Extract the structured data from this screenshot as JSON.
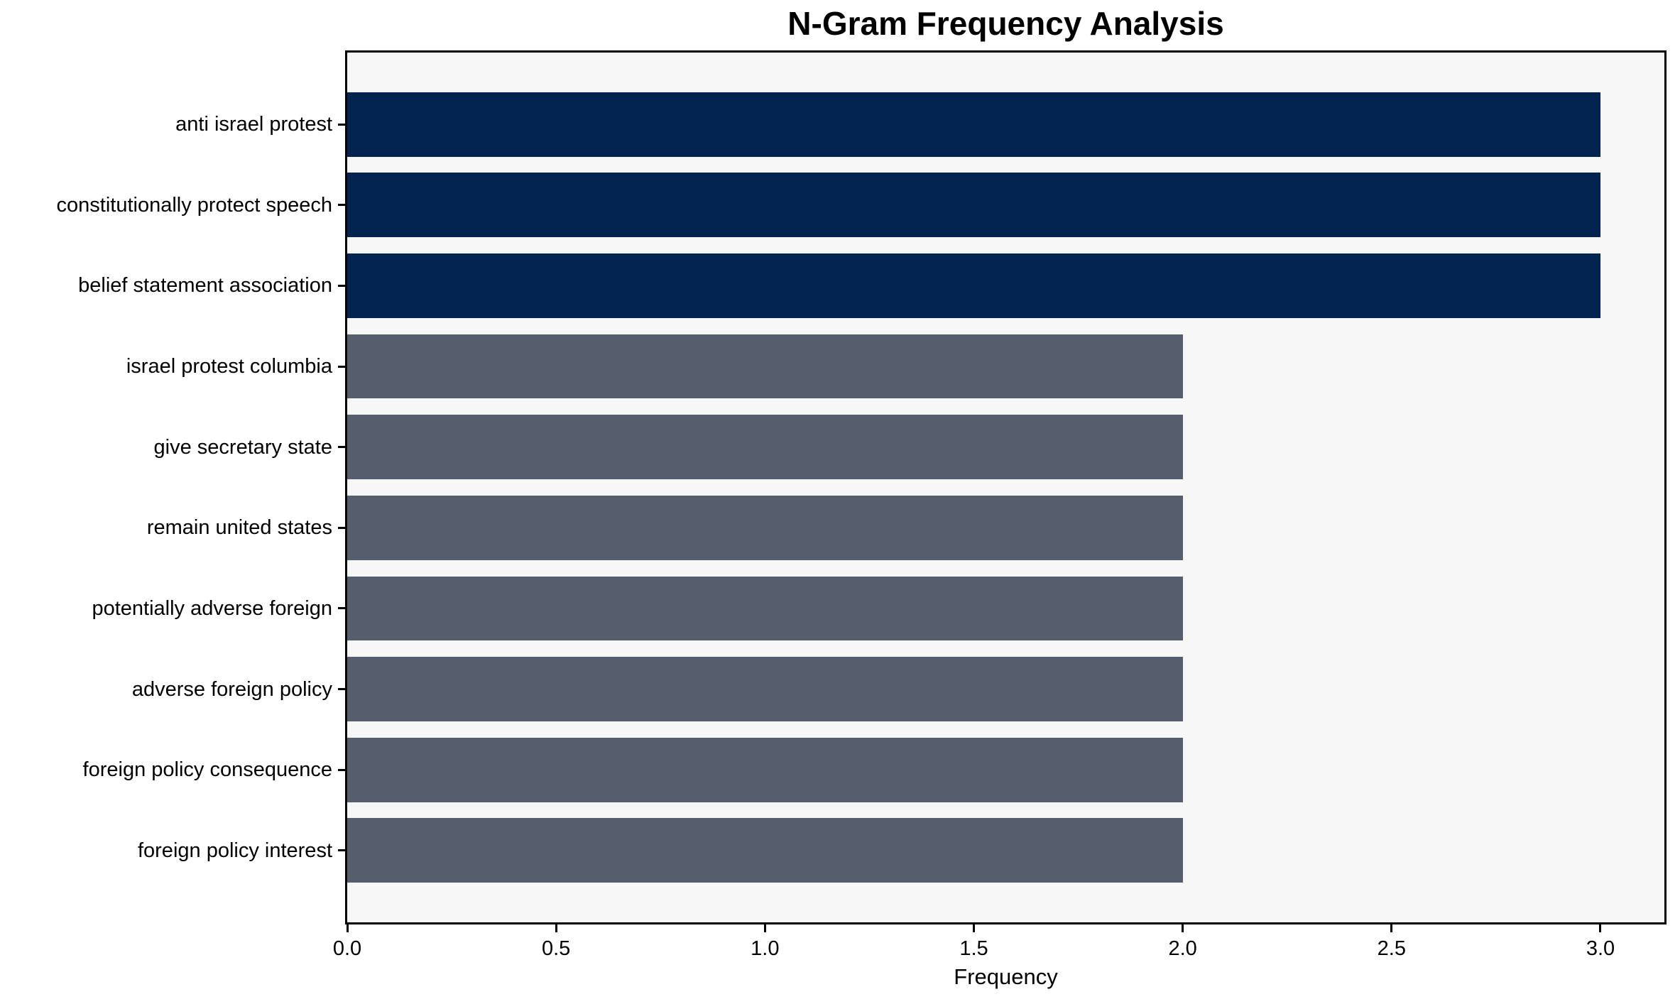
{
  "chart_data": {
    "type": "bar",
    "orientation": "horizontal",
    "title": "N-Gram Frequency Analysis",
    "xlabel": "Frequency",
    "ylabel": "",
    "categories": [
      "anti israel protest",
      "constitutionally protect speech",
      "belief statement association",
      "israel protest columbia",
      "give secretary state",
      "remain united states",
      "potentially adverse foreign",
      "adverse foreign policy",
      "foreign policy consequence",
      "foreign policy interest"
    ],
    "values": [
      3,
      3,
      3,
      2,
      2,
      2,
      2,
      2,
      2,
      2
    ],
    "bar_colors": [
      "#03234f",
      "#03234f",
      "#03234f",
      "#565d6c",
      "#565d6c",
      "#565d6c",
      "#565d6c",
      "#565d6c",
      "#565d6c",
      "#565d6c"
    ],
    "xlim": [
      0,
      3.153
    ],
    "x_ticks": [
      0.0,
      0.5,
      1.0,
      1.5,
      2.0,
      2.5,
      3.0
    ],
    "x_tick_labels": [
      "0.0",
      "0.5",
      "1.0",
      "1.5",
      "2.0",
      "2.5",
      "3.0"
    ],
    "grid": false,
    "legend": null,
    "colors": {
      "high_frequency_bar": "#03234f",
      "low_frequency_bar": "#565d6c",
      "plot_background": "#f7f7f7",
      "figure_background": "#ffffff",
      "axis_line": "#000000",
      "text": "#000000"
    }
  }
}
